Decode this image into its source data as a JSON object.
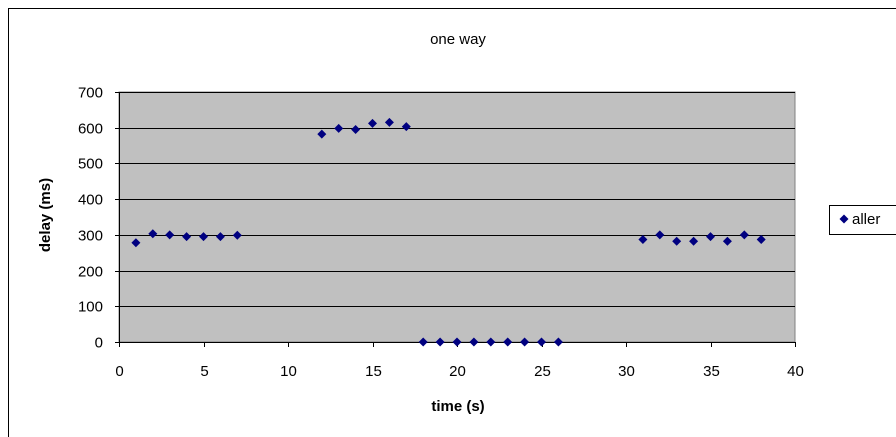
{
  "chart_data": {
    "type": "scatter",
    "title": "one way",
    "xlabel": "time (s)",
    "ylabel": "delay (ms)",
    "xlim": [
      0,
      40
    ],
    "ylim": [
      0,
      700
    ],
    "x_ticks": [
      0,
      5,
      10,
      15,
      20,
      25,
      30,
      35,
      40
    ],
    "y_ticks": [
      0,
      100,
      200,
      300,
      400,
      500,
      600,
      700
    ],
    "grid": "horizontal",
    "legend_position": "right",
    "plot_background": "#c0c0c0",
    "series": [
      {
        "name": "aller",
        "color": "#000080",
        "marker": "diamond",
        "points": [
          {
            "x": 1,
            "y": 278
          },
          {
            "x": 2,
            "y": 303
          },
          {
            "x": 3,
            "y": 300
          },
          {
            "x": 4,
            "y": 295
          },
          {
            "x": 5,
            "y": 295
          },
          {
            "x": 6,
            "y": 295
          },
          {
            "x": 7,
            "y": 299
          },
          {
            "x": 12,
            "y": 582
          },
          {
            "x": 13,
            "y": 598
          },
          {
            "x": 14,
            "y": 595
          },
          {
            "x": 15,
            "y": 612
          },
          {
            "x": 16,
            "y": 615
          },
          {
            "x": 17,
            "y": 603
          },
          {
            "x": 18,
            "y": 0
          },
          {
            "x": 19,
            "y": 0
          },
          {
            "x": 20,
            "y": 0
          },
          {
            "x": 21,
            "y": 0
          },
          {
            "x": 22,
            "y": 0
          },
          {
            "x": 23,
            "y": 0
          },
          {
            "x": 24,
            "y": 0
          },
          {
            "x": 25,
            "y": 0
          },
          {
            "x": 26,
            "y": 0
          },
          {
            "x": 31,
            "y": 287
          },
          {
            "x": 32,
            "y": 300
          },
          {
            "x": 33,
            "y": 282
          },
          {
            "x": 34,
            "y": 282
          },
          {
            "x": 35,
            "y": 295
          },
          {
            "x": 36,
            "y": 282
          },
          {
            "x": 37,
            "y": 300
          },
          {
            "x": 38,
            "y": 287
          }
        ]
      }
    ]
  }
}
